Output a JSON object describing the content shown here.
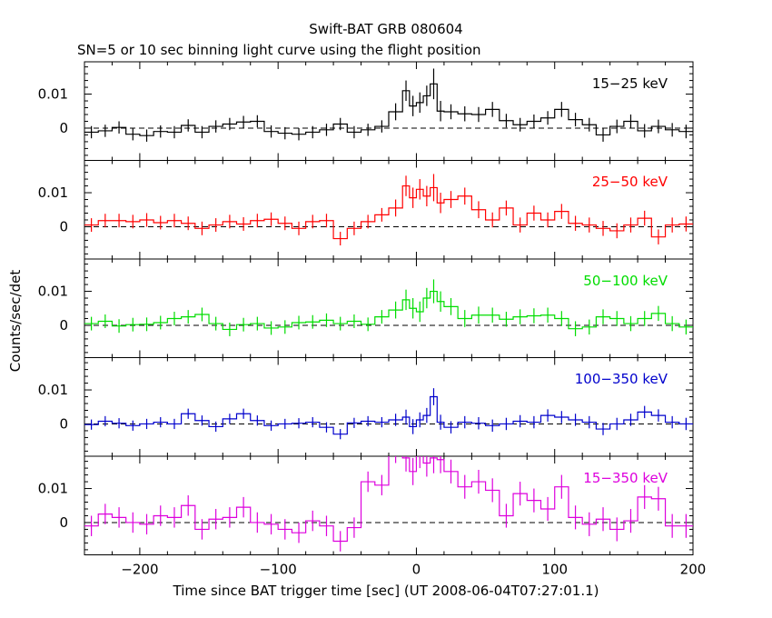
{
  "chart_data": {
    "type": "line",
    "title": "Swift-BAT GRB 080604",
    "subtitle": "SN=5 or 10 sec binning light curve using the flight position",
    "xlabel": "Time since BAT trigger time [sec] (UT 2008-06-04T07:27:01.1)",
    "ylabel": "Counts/sec/det",
    "xlim": [
      -240,
      200
    ],
    "x_ticks": [
      -200,
      -100,
      0,
      100,
      200
    ],
    "x_tick_labels": [
      "−200",
      "−100",
      "0",
      "100",
      "200"
    ],
    "ylim": [
      -0.0095,
      0.0195
    ],
    "y_ticks": [
      0,
      0.01
    ],
    "y_tick_labels": [
      "0",
      "0.01"
    ],
    "grid": false,
    "zero_line": "dashed",
    "panels": [
      {
        "name": "15−25 keV",
        "color": "#000000",
        "x": [
          -235,
          -225,
          -215,
          -205,
          -195,
          -185,
          -175,
          -165,
          -155,
          -145,
          -135,
          -125,
          -115,
          -105,
          -95,
          -85,
          -75,
          -65,
          -55,
          -45,
          -35,
          -25,
          -15,
          -7.5,
          -2.5,
          2.5,
          7.5,
          12.5,
          17.5,
          25,
          35,
          45,
          55,
          65,
          75,
          85,
          95,
          105,
          115,
          125,
          135,
          145,
          155,
          165,
          175,
          185,
          195
        ],
        "y": [
          -0.0012,
          -0.0008,
          0.0002,
          -0.0018,
          -0.0022,
          -0.001,
          -0.0012,
          0.0008,
          -0.0012,
          0.0005,
          0.0012,
          0.0018,
          0.002,
          -0.001,
          -0.0015,
          -0.0018,
          -0.0012,
          -0.0005,
          0.0012,
          -0.0012,
          -0.0005,
          0.0005,
          0.0048,
          0.011,
          0.0065,
          0.0075,
          0.0095,
          0.013,
          0.005,
          0.0048,
          0.0042,
          0.004,
          0.0055,
          0.0022,
          0.001,
          0.002,
          0.003,
          0.0055,
          0.0025,
          0.001,
          -0.002,
          0.0005,
          0.002,
          -0.0008,
          0.0005,
          -0.0005,
          -0.001
        ],
        "err": [
          0.0018,
          0.0018,
          0.0018,
          0.0018,
          0.0018,
          0.0018,
          0.0018,
          0.0018,
          0.0018,
          0.0018,
          0.0018,
          0.0018,
          0.0018,
          0.0018,
          0.0018,
          0.0018,
          0.0018,
          0.0018,
          0.0018,
          0.0018,
          0.0018,
          0.0018,
          0.0025,
          0.003,
          0.003,
          0.003,
          0.003,
          0.0045,
          0.003,
          0.0022,
          0.0022,
          0.0022,
          0.0022,
          0.002,
          0.002,
          0.002,
          0.002,
          0.0022,
          0.002,
          0.002,
          0.002,
          0.002,
          0.002,
          0.002,
          0.002,
          0.002,
          0.002
        ]
      },
      {
        "name": "25−50 keV",
        "color": "#ff0000",
        "x": [
          -235,
          -225,
          -215,
          -205,
          -195,
          -185,
          -175,
          -165,
          -155,
          -145,
          -135,
          -125,
          -115,
          -105,
          -95,
          -85,
          -75,
          -65,
          -55,
          -45,
          -35,
          -25,
          -15,
          -7.5,
          -2.5,
          2.5,
          7.5,
          12.5,
          17.5,
          25,
          35,
          45,
          55,
          65,
          75,
          85,
          95,
          105,
          115,
          125,
          135,
          145,
          155,
          165,
          175,
          185,
          195
        ],
        "y": [
          0.0005,
          0.0018,
          0.0018,
          0.0015,
          0.002,
          0.0012,
          0.0018,
          0.001,
          -0.0005,
          0.0005,
          0.0015,
          0.0008,
          0.0018,
          0.0022,
          0.001,
          -0.0005,
          0.0015,
          0.0018,
          -0.0035,
          -0.0005,
          0.0015,
          0.0035,
          0.0055,
          0.012,
          0.0085,
          0.011,
          0.009,
          0.0115,
          0.007,
          0.008,
          0.009,
          0.005,
          0.002,
          0.0055,
          0.0005,
          0.004,
          0.002,
          0.0045,
          0.001,
          0.0005,
          -0.0005,
          -0.0012,
          0.0005,
          0.0025,
          -0.003,
          0.0005,
          0.0008
        ],
        "err": [
          0.002,
          0.002,
          0.002,
          0.002,
          0.002,
          0.002,
          0.002,
          0.002,
          0.002,
          0.002,
          0.002,
          0.002,
          0.002,
          0.002,
          0.002,
          0.002,
          0.002,
          0.002,
          0.002,
          0.002,
          0.002,
          0.002,
          0.0025,
          0.003,
          0.003,
          0.003,
          0.003,
          0.004,
          0.003,
          0.0025,
          0.0025,
          0.0025,
          0.0022,
          0.0022,
          0.0022,
          0.0022,
          0.0022,
          0.0022,
          0.0022,
          0.0022,
          0.0022,
          0.0022,
          0.0022,
          0.0022,
          0.0022,
          0.0022,
          0.0022
        ]
      },
      {
        "name": "50−100 keV",
        "color": "#00dd00",
        "x": [
          -235,
          -225,
          -215,
          -205,
          -195,
          -185,
          -175,
          -165,
          -155,
          -145,
          -135,
          -125,
          -115,
          -105,
          -95,
          -85,
          -75,
          -65,
          -55,
          -45,
          -35,
          -25,
          -15,
          -7.5,
          -2.5,
          2.5,
          7.5,
          12.5,
          17.5,
          25,
          35,
          45,
          55,
          65,
          75,
          85,
          95,
          105,
          115,
          125,
          135,
          145,
          155,
          165,
          175,
          185,
          195
        ],
        "y": [
          0.0005,
          0.0012,
          -0.0002,
          0.0002,
          0.0003,
          0.0008,
          0.002,
          0.0025,
          0.0032,
          0.0005,
          -0.0012,
          0.0002,
          0.0005,
          -0.0008,
          -0.0005,
          0.0008,
          0.001,
          0.0015,
          0.0005,
          0.0012,
          0.0003,
          0.0025,
          0.0045,
          0.0075,
          0.005,
          0.004,
          0.008,
          0.01,
          0.007,
          0.0055,
          0.002,
          0.003,
          0.003,
          0.0018,
          0.0025,
          0.0028,
          0.003,
          0.002,
          -0.001,
          -0.0005,
          0.0025,
          0.002,
          0.0005,
          0.002,
          0.0035,
          0.0005,
          -0.0005
        ],
        "err": [
          0.002,
          0.002,
          0.002,
          0.002,
          0.002,
          0.002,
          0.002,
          0.002,
          0.002,
          0.002,
          0.002,
          0.002,
          0.002,
          0.002,
          0.002,
          0.002,
          0.002,
          0.002,
          0.002,
          0.002,
          0.002,
          0.002,
          0.0025,
          0.003,
          0.003,
          0.003,
          0.003,
          0.0035,
          0.003,
          0.0025,
          0.0025,
          0.0025,
          0.0022,
          0.0022,
          0.0022,
          0.0022,
          0.0022,
          0.0022,
          0.0022,
          0.0022,
          0.0022,
          0.0022,
          0.0022,
          0.0022,
          0.0022,
          0.0022,
          0.0022
        ]
      },
      {
        "name": "100−350 keV",
        "color": "#0000cc",
        "x": [
          -235,
          -225,
          -215,
          -205,
          -195,
          -185,
          -175,
          -165,
          -155,
          -145,
          -135,
          -125,
          -115,
          -105,
          -95,
          -85,
          -75,
          -65,
          -55,
          -45,
          -35,
          -25,
          -15,
          -7.5,
          -2.5,
          2.5,
          7.5,
          12.5,
          17.5,
          25,
          35,
          45,
          55,
          65,
          75,
          85,
          95,
          105,
          115,
          125,
          135,
          145,
          155,
          165,
          175,
          185,
          195
        ],
        "y": [
          -0.0002,
          0.0008,
          0.0002,
          -0.0005,
          0.0,
          0.0005,
          0.0,
          0.003,
          0.001,
          -0.0008,
          0.0015,
          0.003,
          0.001,
          -0.0005,
          0.0,
          0.0002,
          0.0005,
          -0.001,
          -0.003,
          0.0003,
          0.0008,
          0.0005,
          0.0012,
          0.002,
          -0.0008,
          0.0012,
          0.0025,
          0.008,
          0.0005,
          -0.001,
          0.0005,
          0.0002,
          -0.0005,
          0.0,
          0.0008,
          0.0005,
          0.0025,
          0.002,
          0.0012,
          0.0005,
          -0.0015,
          0.0,
          0.0012,
          0.0035,
          0.0025,
          0.0005,
          0.0
        ],
        "err": [
          0.0015,
          0.0015,
          0.0015,
          0.0015,
          0.0015,
          0.0015,
          0.0015,
          0.0015,
          0.0015,
          0.0015,
          0.0015,
          0.0015,
          0.0015,
          0.0015,
          0.0015,
          0.0015,
          0.0015,
          0.0015,
          0.0015,
          0.0015,
          0.0015,
          0.0015,
          0.0018,
          0.0022,
          0.0022,
          0.0022,
          0.0022,
          0.0025,
          0.0022,
          0.0018,
          0.0018,
          0.0018,
          0.0018,
          0.0018,
          0.0018,
          0.0018,
          0.0018,
          0.0018,
          0.0018,
          0.0018,
          0.0018,
          0.0018,
          0.0018,
          0.0018,
          0.0018,
          0.0018,
          0.0018
        ]
      },
      {
        "name": "15−350 keV",
        "color": "#dd00dd",
        "x": [
          -235,
          -225,
          -215,
          -205,
          -195,
          -185,
          -175,
          -165,
          -155,
          -145,
          -135,
          -125,
          -115,
          -105,
          -95,
          -85,
          -75,
          -65,
          -55,
          -45,
          -35,
          -25,
          -15,
          -7.5,
          -2.5,
          2.5,
          7.5,
          12.5,
          17.5,
          25,
          35,
          45,
          55,
          65,
          75,
          85,
          95,
          105,
          115,
          125,
          135,
          145,
          155,
          165,
          175,
          185,
          195
        ],
        "y": [
          -0.001,
          0.0025,
          0.0015,
          0.0,
          -0.0005,
          0.002,
          0.0015,
          0.005,
          -0.002,
          0.001,
          0.0015,
          0.0045,
          0.0,
          -0.0005,
          -0.002,
          -0.003,
          0.0005,
          -0.001,
          -0.0055,
          -0.0015,
          0.012,
          0.011,
          0.021,
          0.019,
          0.015,
          0.02,
          0.0175,
          0.019,
          0.0185,
          0.015,
          0.0105,
          0.012,
          0.0095,
          0.002,
          0.0085,
          0.0065,
          0.004,
          0.0105,
          0.0015,
          -0.0005,
          0.001,
          -0.002,
          0.0005,
          0.0075,
          0.007,
          -0.001,
          -0.001
        ],
        "err": [
          0.003,
          0.003,
          0.003,
          0.003,
          0.003,
          0.003,
          0.003,
          0.003,
          0.003,
          0.003,
          0.003,
          0.003,
          0.003,
          0.003,
          0.003,
          0.003,
          0.003,
          0.003,
          0.003,
          0.003,
          0.003,
          0.003,
          0.0035,
          0.004,
          0.004,
          0.004,
          0.004,
          0.0045,
          0.004,
          0.0035,
          0.0035,
          0.0035,
          0.0035,
          0.0035,
          0.0035,
          0.0035,
          0.0035,
          0.0035,
          0.0035,
          0.0035,
          0.0035,
          0.0035,
          0.0035,
          0.0035,
          0.0035,
          0.0035,
          0.0035
        ]
      }
    ]
  }
}
